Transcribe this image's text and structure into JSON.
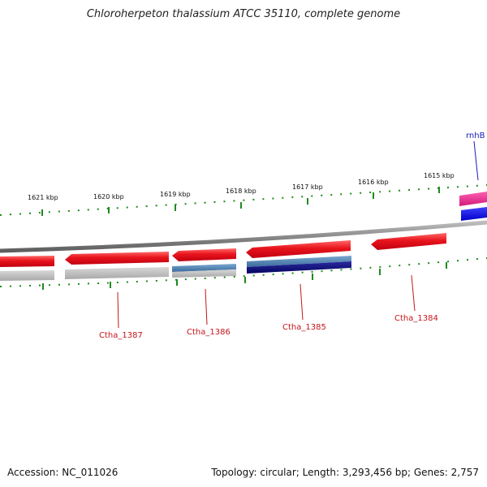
{
  "title": "Chloroherpeton thalassium ATCC 35110, complete genome",
  "footer": {
    "accession": "Accession: NC_011026",
    "summary": "Topology: circular; Length: 3,293,456 bp; Genes: 2,757"
  },
  "ticks": [
    {
      "label": "1621 kbp"
    },
    {
      "label": "1620 kbp"
    },
    {
      "label": "1619 kbp"
    },
    {
      "label": "1618 kbp"
    },
    {
      "label": "1617 kbp"
    },
    {
      "label": "1616 kbp"
    },
    {
      "label": "1615 kbp"
    }
  ],
  "genes": [
    {
      "label": "Ctha_1387"
    },
    {
      "label": "Ctha_1386"
    },
    {
      "label": "Ctha_1385"
    },
    {
      "label": "Ctha_1384"
    },
    {
      "label": "rnhB"
    }
  ],
  "colors": {
    "forward_strand": "#e8141c",
    "reverse_strand": "#e8141c",
    "cog_gray": "#b5b5b5",
    "cog_steel": "#4a7fb0",
    "cog_navy": "#0a0a78",
    "cog_pink": "#e8208c",
    "cog_blue": "#1010e8",
    "tick_green": "#1f8a1f",
    "backbone": "#888888"
  }
}
